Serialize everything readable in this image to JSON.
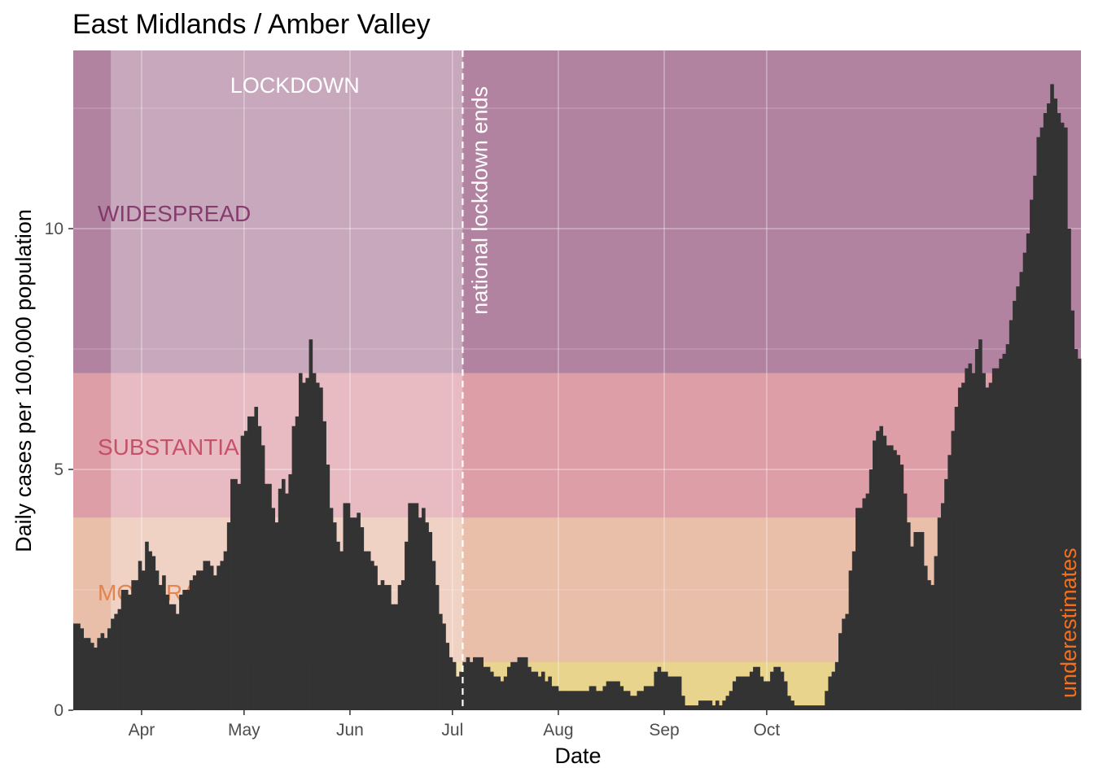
{
  "chart_data": {
    "type": "bar",
    "title": "East Midlands / Amber Valley",
    "xlabel": "Date",
    "ylabel": "Daily cases per 100,000 population",
    "x_ticks": [
      "Apr",
      "May",
      "Jun",
      "Jul",
      "Aug",
      "Sep",
      "Oct"
    ],
    "x_tick_dates": [
      "2020-04-01",
      "2020-05-01",
      "2020-06-01",
      "2020-07-01",
      "2020-08-01",
      "2020-09-01",
      "2020-10-01"
    ],
    "y_ticks": [
      "0",
      "5",
      "10"
    ],
    "ylim": [
      0,
      13.7
    ],
    "grid": true,
    "start_date": "2020-03-12",
    "values": [
      1.8,
      1.8,
      1.7,
      1.5,
      1.5,
      1.4,
      1.3,
      1.5,
      1.6,
      1.5,
      1.7,
      1.9,
      2.0,
      2.1,
      2.5,
      2.5,
      2.4,
      2.7,
      2.7,
      3.1,
      2.9,
      3.5,
      3.3,
      3.2,
      2.9,
      2.6,
      2.8,
      2.4,
      2.2,
      2.2,
      2.0,
      2.4,
      2.5,
      2.5,
      2.7,
      2.8,
      2.9,
      2.9,
      3.1,
      3.1,
      3.0,
      2.8,
      3.0,
      3.1,
      3.3,
      3.9,
      4.8,
      4.8,
      4.7,
      5.7,
      5.8,
      6.1,
      6.1,
      6.3,
      5.9,
      5.5,
      4.7,
      4.7,
      4.2,
      3.9,
      4.6,
      4.8,
      4.5,
      4.9,
      5.9,
      6.1,
      7.0,
      6.8,
      6.9,
      7.7,
      7.0,
      6.8,
      6.7,
      6.0,
      5.1,
      4.2,
      3.9,
      3.5,
      3.3,
      4.3,
      4.3,
      4.0,
      4.0,
      4.1,
      3.8,
      3.3,
      3.3,
      3.1,
      3.0,
      2.6,
      2.7,
      2.6,
      2.6,
      2.2,
      2.2,
      2.6,
      2.7,
      3.5,
      4.3,
      4.3,
      4.3,
      4.0,
      4.2,
      3.9,
      3.7,
      3.1,
      2.6,
      2.0,
      1.8,
      1.4,
      1.1,
      1.0,
      0.7,
      0.8,
      1.0,
      1.1,
      1.0,
      1.1,
      1.1,
      1.1,
      0.9,
      0.9,
      0.8,
      0.7,
      0.7,
      0.6,
      0.7,
      0.9,
      1.0,
      1.0,
      1.1,
      1.1,
      1.1,
      0.9,
      0.8,
      0.8,
      0.7,
      0.8,
      0.6,
      0.7,
      0.5,
      0.5,
      0.4,
      0.4,
      0.4,
      0.4,
      0.4,
      0.4,
      0.4,
      0.4,
      0.4,
      0.5,
      0.5,
      0.4,
      0.4,
      0.5,
      0.6,
      0.6,
      0.6,
      0.6,
      0.5,
      0.4,
      0.4,
      0.3,
      0.3,
      0.4,
      0.4,
      0.5,
      0.5,
      0.5,
      0.8,
      0.9,
      0.8,
      0.8,
      0.7,
      0.7,
      0.7,
      0.7,
      0.3,
      0.1,
      0.1,
      0.1,
      0.1,
      0.2,
      0.2,
      0.2,
      0.2,
      0.1,
      0.2,
      0.1,
      0.2,
      0.3,
      0.4,
      0.6,
      0.7,
      0.7,
      0.7,
      0.7,
      0.8,
      0.9,
      0.9,
      0.7,
      0.6,
      0.6,
      0.8,
      0.9,
      0.9,
      0.8,
      0.6,
      0.3,
      0.2,
      0.1,
      0.1,
      0.1,
      0.1,
      0.1,
      0.1,
      0.1,
      0.1,
      0.1,
      0.4,
      0.7,
      0.8,
      1.0,
      1.6,
      1.9,
      2.0,
      2.9,
      3.3,
      4.2,
      4.2,
      4.4,
      4.5,
      5.0,
      5.6,
      5.8,
      5.9,
      5.7,
      5.5,
      5.5,
      5.4,
      5.3,
      5.1,
      4.5,
      3.9,
      3.4,
      3.7,
      3.7,
      3.7,
      3.0,
      2.7,
      2.6,
      3.2,
      4.0,
      4.3,
      4.8,
      5.3,
      5.8,
      6.3,
      6.7,
      6.8,
      7.1,
      7.2,
      7.0,
      7.5,
      7.7,
      7.0,
      6.7,
      6.8,
      7.1,
      7.1,
      7.3,
      7.4,
      7.6,
      8.1,
      8.5,
      8.8,
      9.1,
      9.5,
      9.9,
      10.6,
      11.1,
      11.9,
      12.1,
      12.4,
      12.6,
      13.0,
      12.7,
      12.4,
      12.2,
      12.1,
      10.0,
      8.3,
      7.5,
      7.3
    ],
    "bands": [
      {
        "label": "MODERATE",
        "from": 1,
        "to": 4,
        "color": "#e8a27e"
      },
      {
        "label": "SUBSTANTIAL",
        "from": 4,
        "to": 7,
        "color": "#d56b7c"
      },
      {
        "label": "WIDESPREAD",
        "from": 7,
        "to": 13.7,
        "color": "#8a3e6e"
      }
    ],
    "low_band_color": "#e8c75a",
    "lockdown": {
      "label": "LOCKDOWN",
      "start": "2020-03-23",
      "end": "2020-07-04"
    },
    "lockdown_end_label": "national lockdown ends",
    "underestimates_label": "underestimates",
    "colors": {
      "bars": "#333333",
      "underestimates": "#f07020"
    }
  }
}
